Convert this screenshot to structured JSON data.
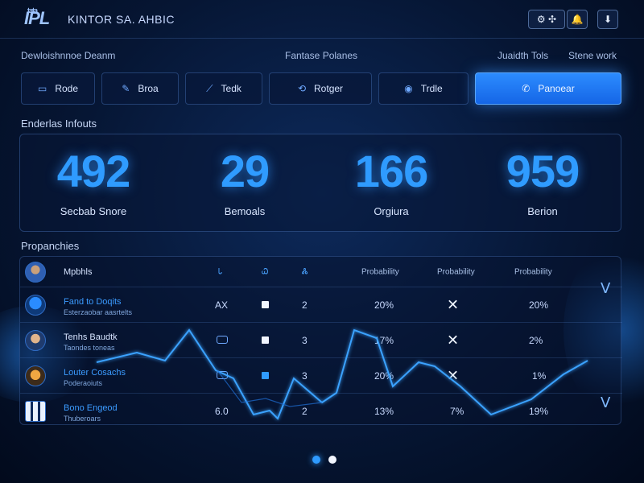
{
  "header": {
    "logo_small": "tata",
    "logo_text": "IPL",
    "title": "KINTOR SA. AHBIC",
    "buttons": [
      {
        "icon": "settings-gear-icon",
        "label": "⚙ ✣"
      },
      {
        "icon": "bell-icon",
        "label": "🔔"
      },
      {
        "icon": "download-icon",
        "label": "⬇"
      }
    ]
  },
  "subnav": {
    "left": "Dewloishnnoe Deanm",
    "center": "Fantase Polanes",
    "right1": "Juaidth Tols",
    "right2": "Stene work"
  },
  "toolbar": [
    {
      "label": "Rode",
      "icon": "card-icon",
      "glyph": "▭"
    },
    {
      "label": "Broa",
      "icon": "pencil-icon",
      "glyph": "✎"
    },
    {
      "label": "Tedk",
      "icon": "link-icon",
      "glyph": "⟋"
    },
    {
      "label": "Rotger",
      "icon": "refresh-icon",
      "glyph": "⟲"
    },
    {
      "label": "Trdle",
      "icon": "user-icon",
      "glyph": "◉"
    },
    {
      "label": "Panoear",
      "icon": "phone-icon",
      "glyph": "✆",
      "active": true
    }
  ],
  "stats_section": {
    "label": "Enderlas Infouts"
  },
  "stats": [
    {
      "value": "492",
      "label": "Secbab Snore"
    },
    {
      "value": "29",
      "label": "Bemoals"
    },
    {
      "value": "166",
      "label": "Orgiura"
    },
    {
      "value": "959",
      "label": "Berion"
    }
  ],
  "table_section": {
    "label": "Propanchies"
  },
  "table": {
    "headers": {
      "name": "Mpbhls",
      "c1": "Ꮣ",
      "c2": "Ꮗ",
      "c3": "Ꮬ",
      "p1": "Probability",
      "p2": "Probability",
      "p3": "Probability"
    },
    "rows": [
      {
        "name": "Fand to Doqits",
        "sub": "Esterzaobar aasrtelts",
        "c1": "AX",
        "c3": "2",
        "p1": "20%",
        "p3": "20%"
      },
      {
        "name": "Tenhs Baudtk",
        "sub": "Taondes toneas",
        "c3": "3",
        "p1": "17%",
        "p3": "2%"
      },
      {
        "name": "Louter Cosachs",
        "sub": "Poderaoiuts",
        "c3": "3",
        "p1": "20%",
        "p3": "1%"
      },
      {
        "name": "Bono Engeod",
        "sub": "Thuberoars",
        "c1": "6.0",
        "c3": "2",
        "p1": "13%",
        "p2": "7%",
        "p3": "19%"
      }
    ]
  },
  "pagination": {
    "count": 2,
    "active": 0
  }
}
